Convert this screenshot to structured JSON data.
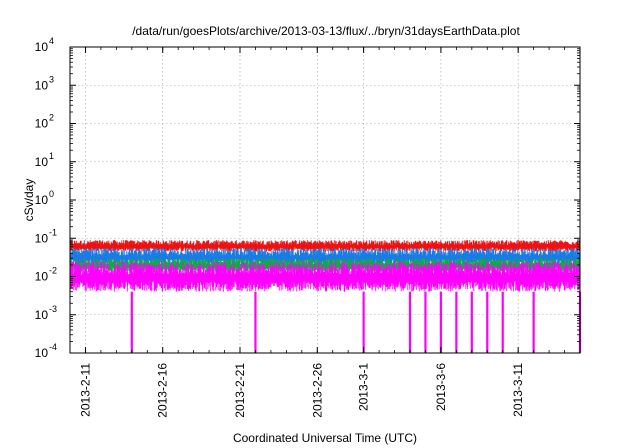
{
  "chart_data": {
    "type": "line",
    "title": "/data/run/goesPlots/archive/2013-03-13/flux/../bryn/31daysEarthData.plot",
    "xlabel": "Coordinated Universal Time (UTC)",
    "ylabel": "cSv/day",
    "yscale": "log",
    "ylim": [
      0.0001,
      10000
    ],
    "xlim": [
      "2013-02-10",
      "2013-03-15"
    ],
    "y_ticks": [
      {
        "base": "10",
        "exp": "-4"
      },
      {
        "base": "10",
        "exp": "-3"
      },
      {
        "base": "10",
        "exp": "-2"
      },
      {
        "base": "10",
        "exp": "-1"
      },
      {
        "base": "10",
        "exp": "0"
      },
      {
        "base": "10",
        "exp": "1"
      },
      {
        "base": "10",
        "exp": "2"
      },
      {
        "base": "10",
        "exp": "3"
      },
      {
        "base": "10",
        "exp": "4"
      }
    ],
    "x_ticks": [
      "2013-2-11",
      "2013-2-16",
      "2013-2-21",
      "2013-2-26",
      "2013-3-1",
      "2013-3-6",
      "2013-3-11"
    ],
    "grid": true,
    "series": [
      {
        "color": "#ee1111",
        "y_low": 0.045,
        "y_high": 0.09
      },
      {
        "color": "#1a7be6",
        "y_low": 0.02,
        "y_high": 0.055
      },
      {
        "color": "#11aa44",
        "y_low": 0.013,
        "y_high": 0.03
      },
      {
        "color": "#ff00ff",
        "y_low": 0.004,
        "y_high": 0.025,
        "dropouts": [
          "2013-02-14",
          "2013-02-22",
          "2013-03-01",
          "2013-03-04",
          "2013-03-05",
          "2013-03-06",
          "2013-03-07",
          "2013-03-08",
          "2013-03-09",
          "2013-03-10",
          "2013-03-12",
          "2013-03-15"
        ]
      }
    ]
  }
}
